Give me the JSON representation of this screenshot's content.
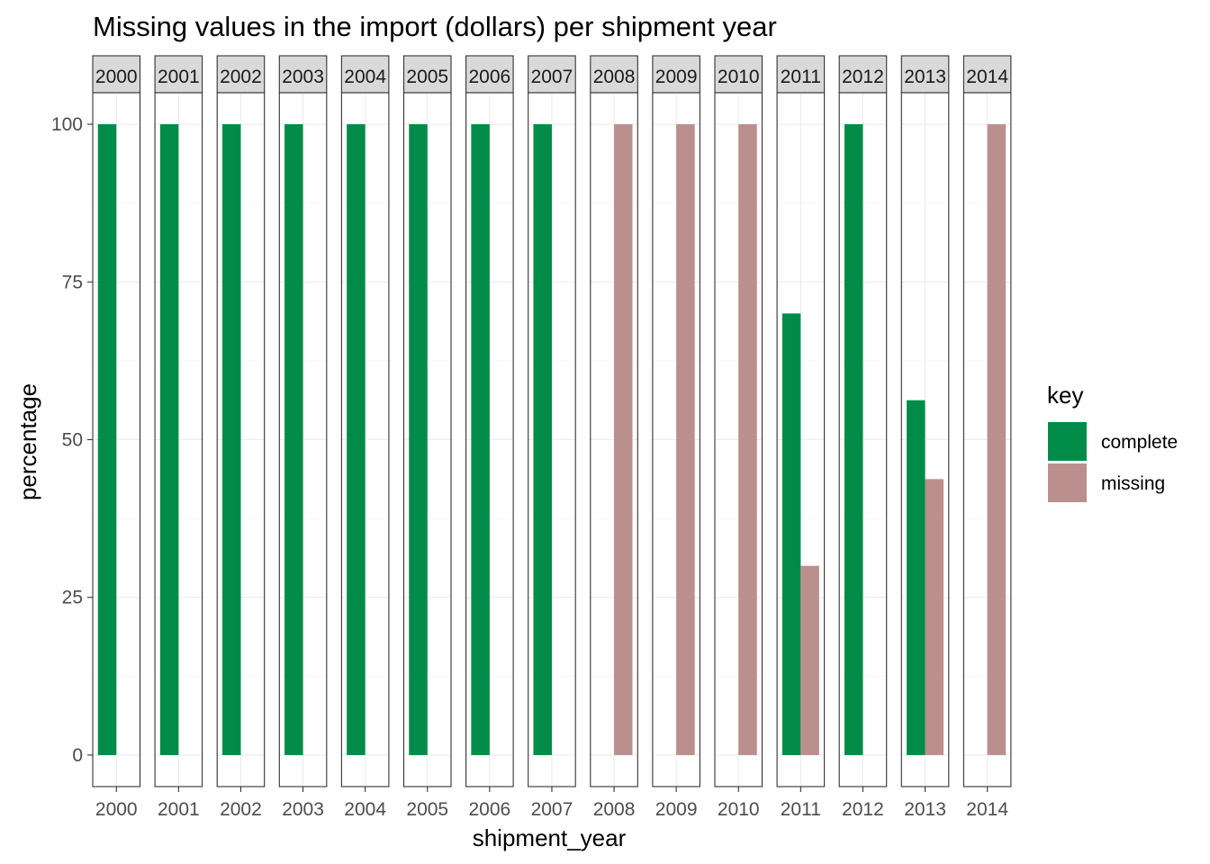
{
  "chart_data": {
    "type": "bar",
    "title": "Missing values in the import (dollars) per shipment year",
    "xlabel": "shipment_year",
    "ylabel": "percentage",
    "ylim": [
      -5,
      105
    ],
    "yticks": [
      0,
      25,
      50,
      75,
      100
    ],
    "grid": true,
    "facet_by": "shipment_year",
    "facets": [
      "2000",
      "2001",
      "2002",
      "2003",
      "2004",
      "2005",
      "2006",
      "2007",
      "2008",
      "2009",
      "2010",
      "2011",
      "2012",
      "2013",
      "2014"
    ],
    "legend": {
      "title": "key",
      "position": "right",
      "entries": [
        "complete",
        "missing"
      ]
    },
    "series": [
      {
        "name": "complete",
        "color": "#008c48",
        "values": [
          100,
          100,
          100,
          100,
          100,
          100,
          100,
          100,
          0,
          0,
          0,
          70,
          100,
          56.25,
          0
        ]
      },
      {
        "name": "missing",
        "color": "#bc8f8f",
        "values": [
          0,
          0,
          0,
          0,
          0,
          0,
          0,
          0,
          100,
          100,
          100,
          30,
          0,
          43.75,
          100
        ]
      }
    ]
  }
}
